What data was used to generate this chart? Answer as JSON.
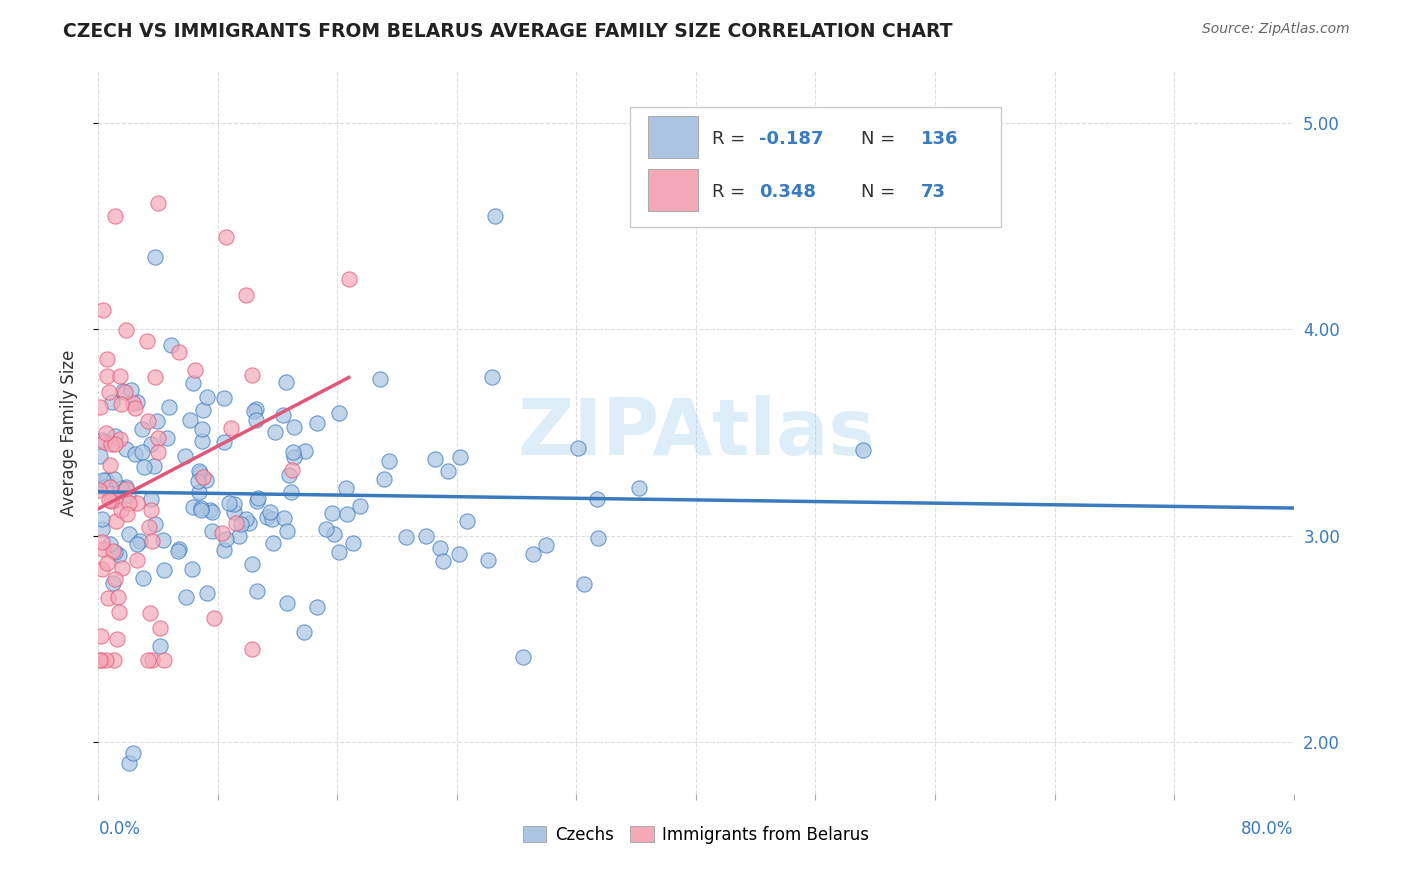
{
  "title": "CZECH VS IMMIGRANTS FROM BELARUS AVERAGE FAMILY SIZE CORRELATION CHART",
  "source": "Source: ZipAtlas.com",
  "ylabel": "Average Family Size",
  "yticks": [
    2.0,
    3.0,
    4.0,
    5.0
  ],
  "xlim": [
    0.0,
    0.8
  ],
  "ylim": [
    1.75,
    5.25
  ],
  "czech_color": "#aac4e2",
  "belarus_color": "#f4a8b8",
  "czech_line_color": "#3a7abf",
  "belarus_line_color": "#e05878",
  "watermark": "ZIPAtlas",
  "background_color": "#ffffff",
  "grid_color": "#dddddd",
  "grid_style": "--"
}
